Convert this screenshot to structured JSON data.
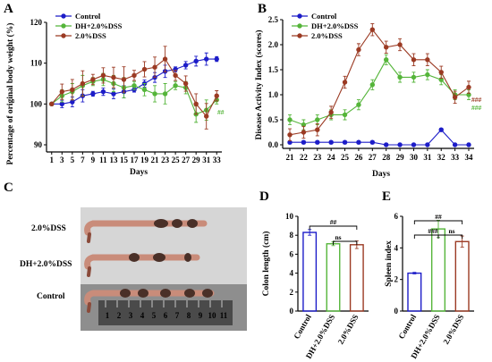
{
  "colors": {
    "control": "#1c1cc8",
    "dh": "#55b53a",
    "dss": "#9b3a23"
  },
  "panels": {
    "A": {
      "letter": "A",
      "chart_data": {
        "type": "line",
        "xlabel": "Days",
        "ylabel": "Percentage of original body weight (%)",
        "xlim": [
          0,
          34
        ],
        "ylim": [
          90,
          120
        ],
        "xticks": [
          1,
          3,
          5,
          7,
          9,
          11,
          13,
          15,
          17,
          19,
          21,
          23,
          25,
          27,
          29,
          31,
          33
        ],
        "yticks": [
          90,
          100,
          110,
          120
        ],
        "x": [
          1,
          3,
          5,
          7,
          9,
          11,
          13,
          15,
          17,
          19,
          21,
          23,
          25,
          27,
          29,
          31,
          33
        ],
        "legend": "top-left",
        "annotation": "##",
        "series": [
          {
            "name": "Control",
            "key": "control",
            "values": [
              100,
              100,
              100.5,
              102,
              102.5,
              103,
              102.5,
              103,
              103.5,
              105,
              106.5,
              108,
              108.5,
              109.5,
              110.5,
              111,
              111
            ]
          },
          {
            "name": "DH+2.0%DSS",
            "key": "dh",
            "values": [
              100,
              102,
              103,
              104.5,
              105.5,
              106,
              105,
              104,
              104.5,
              103.5,
              102.5,
              102.5,
              104.5,
              104,
              97.5,
              98.5,
              101
            ]
          },
          {
            "name": "2.0%DSS",
            "key": "dss",
            "values": [
              100,
              103,
              103.5,
              105,
              106,
              107,
              106.5,
              106,
              107,
              108.5,
              109,
              111,
              107,
              105,
              100,
              97,
              102
            ]
          }
        ]
      }
    },
    "B": {
      "letter": "B",
      "chart_data": {
        "type": "line",
        "xlabel": "Days",
        "ylabel": "Disease Activity Index (scores)",
        "ylim": [
          0,
          2.5
        ],
        "yticks": [
          "0.0",
          "0.5",
          "1.0",
          "1.5",
          "2.0",
          "2.5"
        ],
        "x": [
          21,
          22,
          23,
          24,
          25,
          26,
          27,
          28,
          29,
          30,
          31,
          32,
          33,
          34
        ],
        "legend": "top-left",
        "annotations": [
          "###",
          "###"
        ],
        "series": [
          {
            "name": "Control",
            "key": "control",
            "values": [
              0.05,
              0.05,
              0.05,
              0.05,
              0.05,
              0.05,
              0.05,
              0,
              0,
              0,
              0,
              0.3,
              0,
              0
            ]
          },
          {
            "name": "DH+2.0%DSS",
            "key": "dh",
            "values": [
              0.5,
              0.4,
              0.5,
              0.6,
              0.6,
              0.8,
              1.2,
              1.7,
              1.35,
              1.35,
              1.4,
              1.3,
              1.0,
              1.0
            ]
          },
          {
            "name": "2.0%DSS",
            "key": "dss",
            "values": [
              0.2,
              0.25,
              0.3,
              0.65,
              1.25,
              1.9,
              2.3,
              1.95,
              2.0,
              1.7,
              1.7,
              1.45,
              0.95,
              1.15
            ]
          }
        ]
      }
    },
    "C": {
      "letter": "C",
      "labels": [
        "2.0%DSS",
        "DH+2.0%DSS",
        "Control"
      ],
      "ruler_numbers": [
        "1",
        "2",
        "3",
        "4",
        "5",
        "6",
        "7",
        "8",
        "9",
        "10",
        "11"
      ]
    },
    "D": {
      "letter": "D",
      "chart_data": {
        "type": "bar",
        "ylabel": "Colon length (cm)",
        "ylim": [
          0,
          10
        ],
        "yticks": [
          0,
          2,
          4,
          6,
          8,
          10
        ],
        "categories": [
          "Control",
          "DH+2.0%DSS",
          "2.0%DSS"
        ],
        "keys": [
          "control",
          "dh",
          "dss"
        ],
        "values": [
          8.3,
          7.1,
          7.0
        ],
        "errors": [
          0.3,
          0.2,
          0.4
        ],
        "significance": [
          "##",
          "ns"
        ]
      }
    },
    "E": {
      "letter": "E",
      "chart_data": {
        "type": "bar",
        "ylabel": "Spleen index",
        "ylim": [
          0,
          6
        ],
        "yticks": [
          0,
          2,
          4,
          6
        ],
        "categories": [
          "Control",
          "DH+2.0%DSS",
          "2.0%DSS"
        ],
        "keys": [
          "control",
          "dh",
          "dss"
        ],
        "values": [
          2.4,
          5.2,
          4.4
        ],
        "errors": [
          0.05,
          0.55,
          0.35
        ],
        "significance": [
          "##",
          "###",
          "ns"
        ]
      }
    }
  }
}
